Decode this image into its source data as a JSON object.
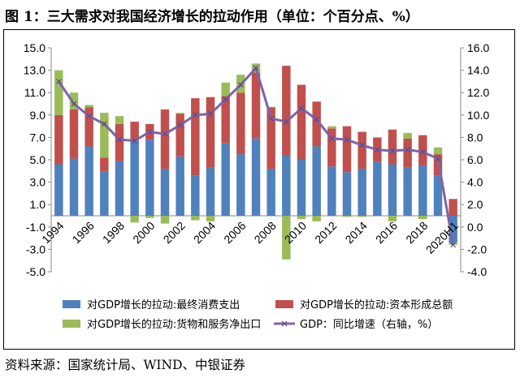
{
  "title": "图 1：三大需求对我国经济增长的拉动作用（单位：个百分点、%）",
  "source": "资料来源：国家统计局、WIND、中银证券",
  "chart_data": {
    "type": "bar",
    "stacked": true,
    "categories": [
      "1994",
      "1995",
      "1996",
      "1997",
      "1998",
      "1999",
      "2000",
      "2001",
      "2002",
      "2003",
      "2004",
      "2005",
      "2006",
      "2007",
      "2008",
      "2009",
      "2010",
      "2011",
      "2012",
      "2013",
      "2014",
      "2015",
      "2016",
      "2017",
      "2018",
      "2019",
      "2020H1"
    ],
    "x_tick_labels": [
      "1994",
      "1996",
      "1998",
      "2000",
      "2002",
      "2004",
      "2006",
      "2008",
      "2010",
      "2012",
      "2014",
      "2016",
      "2018",
      "2020H1"
    ],
    "series": [
      {
        "name": "对GDP增长的拉动:最终消费支出",
        "axis": "left",
        "color": "#4F81BD",
        "values": [
          4.6,
          5.1,
          6.2,
          4.0,
          4.9,
          6.8,
          6.8,
          4.2,
          5.3,
          3.6,
          4.3,
          6.5,
          5.5,
          6.9,
          4.2,
          5.4,
          5.0,
          6.2,
          4.4,
          3.9,
          4.2,
          4.8,
          4.6,
          4.3,
          4.5,
          3.6,
          -2.4
        ]
      },
      {
        "name": "对GDP增长的拉动:资本形成总额",
        "axis": "left",
        "color": "#C0504D",
        "values": [
          4.4,
          4.4,
          3.5,
          1.2,
          3.3,
          1.6,
          1.4,
          5.3,
          3.8,
          6.9,
          6.3,
          4.2,
          5.5,
          5.9,
          5.5,
          8.0,
          6.7,
          4.0,
          3.4,
          4.1,
          3.3,
          2.2,
          3.1,
          2.6,
          2.7,
          1.9,
          1.5
        ]
      },
      {
        "name": "对GDP增长的拉动:货物和服务净出口",
        "axis": "left",
        "color": "#9BBB59",
        "values": [
          4.0,
          1.5,
          0.2,
          4.0,
          0.7,
          -0.6,
          -0.2,
          -0.7,
          0.1,
          -0.4,
          -0.5,
          1.2,
          1.6,
          0.8,
          0.0,
          -3.9,
          -0.3,
          -0.5,
          0.2,
          -0.1,
          -0.1,
          0.0,
          -0.5,
          0.5,
          -0.3,
          0.6,
          -0.2
        ]
      },
      {
        "name": "GDP：同比增速（右轴，%）",
        "axis": "right",
        "type": "line",
        "color": "#7F63A8",
        "values": [
          13.0,
          11.0,
          9.9,
          9.2,
          7.8,
          7.7,
          8.5,
          8.3,
          9.1,
          10.0,
          10.1,
          11.4,
          12.7,
          14.2,
          9.7,
          9.4,
          10.6,
          9.6,
          7.9,
          7.8,
          7.3,
          6.9,
          6.8,
          6.9,
          6.7,
          6.1,
          -1.6
        ]
      }
    ],
    "y_left": {
      "min": -5.0,
      "max": 15.0,
      "step": 2.0,
      "ticks": [
        "15.0",
        "13.0",
        "11.0",
        "9.0",
        "7.0",
        "5.0",
        "3.0",
        "1.0",
        "-1.0",
        "-3.0",
        "-5.0"
      ]
    },
    "y_right": {
      "min": -4.0,
      "max": 16.0,
      "step": 2.0,
      "ticks": [
        "16.0",
        "14.0",
        "12.0",
        "10.0",
        "8.0",
        "6.0",
        "4.0",
        "2.0",
        "0.0",
        "-2.0",
        "-4.0"
      ]
    },
    "legend_position": "bottom",
    "grid": false
  }
}
